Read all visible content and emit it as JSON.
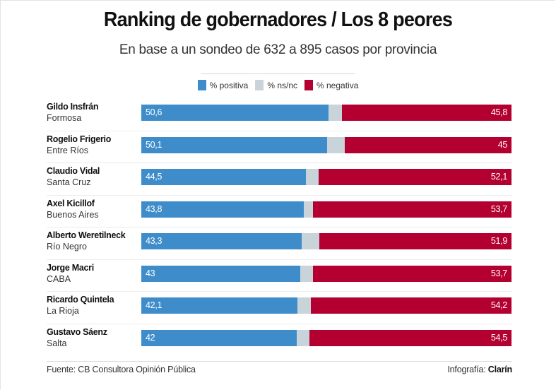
{
  "chart_data": {
    "type": "bar",
    "stacked": true,
    "orientation": "horizontal",
    "title": "Ranking de gobernadores / Los 8 peores",
    "subtitle": "En base a un sondeo de 632 a 895 casos por provincia",
    "xlabel": "",
    "ylabel": "",
    "xlim": [
      0,
      100
    ],
    "grid": false,
    "legend_position": "top-center",
    "legend": [
      {
        "key": "positiva",
        "label": "% positiva",
        "color": "#3e8dca"
      },
      {
        "key": "nsnc",
        "label": "% ns/nc",
        "color": "#c8d3da"
      },
      {
        "key": "negativa",
        "label": "% negativa",
        "color": "#b30030"
      }
    ],
    "categories": [
      {
        "name": "Gildo Insfrán",
        "province": "Formosa"
      },
      {
        "name": "Rogelio Frigerio",
        "province": "Entre Ríos"
      },
      {
        "name": "Claudio Vidal",
        "province": "Santa Cruz"
      },
      {
        "name": "Axel Kicillof",
        "province": "Buenos Aires"
      },
      {
        "name": "Alberto Weretilneck",
        "province": "Río Negro"
      },
      {
        "name": "Jorge Macri",
        "province": "CABA"
      },
      {
        "name": "Ricardo Quintela",
        "province": "La Rioja"
      },
      {
        "name": "Gustavo Sáenz",
        "province": "Salta"
      }
    ],
    "series": [
      {
        "name": "% positiva",
        "values": [
          50.6,
          50.1,
          44.5,
          43.8,
          43.3,
          43.0,
          42.1,
          42.0
        ],
        "labels": [
          "50,6",
          "50,1",
          "44,5",
          "43,8",
          "43,3",
          "43",
          "42,1",
          "42"
        ]
      },
      {
        "name": "% ns/nc",
        "values": [
          3.6,
          4.9,
          3.4,
          2.5,
          4.8,
          3.3,
          3.7,
          3.5
        ],
        "labels": [
          "",
          "",
          "",
          "",
          "",
          "",
          "",
          ""
        ]
      },
      {
        "name": "% negativa",
        "values": [
          45.8,
          45.0,
          52.1,
          53.7,
          51.9,
          53.7,
          54.2,
          54.5
        ],
        "labels": [
          "45,8",
          "45",
          "52,1",
          "53,7",
          "51,9",
          "53,7",
          "54,2",
          "54,5"
        ]
      }
    ]
  },
  "footer": {
    "source": "Fuente: CB Consultora Opinión Pública",
    "credit_prefix": "Infografía:",
    "credit_brand": "Clarín"
  }
}
